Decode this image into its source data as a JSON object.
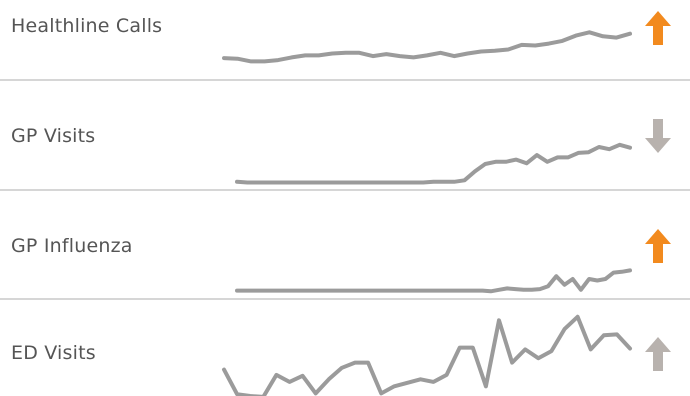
{
  "colors": {
    "line": "#9b9b9b",
    "up_alert": "#f28a1e",
    "down_neutral": "#b8b2ae",
    "up_neutral": "#b8b2ae"
  },
  "chart_data": [
    {
      "type": "line",
      "title": "Healthline Calls",
      "trend": "up",
      "trend_color": "up_alert",
      "ylim": [
        0,
        100
      ],
      "x": [
        0,
        1,
        2,
        3,
        4,
        5,
        6,
        7,
        8,
        9,
        10,
        11,
        12,
        13,
        14,
        15,
        16,
        17,
        18,
        19,
        20,
        21,
        22,
        23,
        24,
        25,
        26,
        27,
        28,
        29,
        30
      ],
      "values": [
        12,
        11,
        7,
        7,
        9,
        13,
        16,
        16,
        19,
        20,
        20,
        15,
        18,
        15,
        13,
        16,
        20,
        15,
        19,
        22,
        23,
        25,
        32,
        31,
        34,
        38,
        46,
        51,
        45,
        43,
        49
      ]
    },
    {
      "type": "line",
      "title": "GP Visits",
      "trend": "down",
      "trend_color": "down_neutral",
      "ylim": [
        0,
        100
      ],
      "x": [
        0,
        1,
        2,
        3,
        4,
        5,
        6,
        7,
        8,
        9,
        10,
        11,
        12,
        13,
        14,
        15,
        16,
        17,
        18,
        19,
        20,
        21,
        22,
        23,
        24,
        25,
        26,
        27,
        28,
        29,
        30,
        31,
        32,
        33,
        34,
        35,
        36,
        37,
        38
      ],
      "values": [
        3,
        2,
        2,
        2,
        2,
        2,
        2,
        2,
        2,
        2,
        2,
        2,
        2,
        2,
        2,
        2,
        2,
        2,
        2,
        3,
        3,
        3,
        5,
        17,
        27,
        30,
        30,
        33,
        28,
        39,
        30,
        36,
        36,
        42,
        43,
        50,
        47,
        53,
        49
      ]
    },
    {
      "type": "line",
      "title": "GP Influenza",
      "trend": "up",
      "trend_color": "up_alert",
      "ylim": [
        0,
        100
      ],
      "x": [
        0,
        1,
        2,
        3,
        4,
        5,
        6,
        7,
        8,
        9,
        10,
        11,
        12,
        13,
        14,
        15,
        16,
        17,
        18,
        19,
        20,
        21,
        22,
        23,
        24,
        25,
        26,
        27,
        28,
        29,
        30,
        31,
        32,
        33,
        34,
        35,
        36,
        37,
        38,
        39,
        40,
        41,
        42,
        43,
        44,
        45,
        46,
        47,
        48
      ],
      "values": [
        2,
        2,
        2,
        2,
        2,
        2,
        2,
        2,
        2,
        2,
        2,
        2,
        2,
        2,
        2,
        2,
        2,
        2,
        2,
        2,
        2,
        2,
        2,
        2,
        2,
        2,
        2,
        2,
        2,
        2,
        2,
        1,
        3,
        5,
        4,
        3,
        3,
        4,
        8,
        22,
        10,
        18,
        3,
        18,
        16,
        18,
        27,
        28,
        30
      ]
    },
    {
      "type": "line",
      "title": "ED Visits",
      "trend": "up",
      "trend_color": "up_neutral",
      "ylim": [
        0,
        100
      ],
      "x": [
        0,
        1,
        2,
        3,
        4,
        5,
        6,
        7,
        8,
        9,
        10,
        11,
        12,
        13,
        14,
        15,
        16,
        17,
        18,
        19,
        20,
        21,
        22,
        23,
        24,
        25,
        26,
        27,
        28,
        29,
        30,
        31
      ],
      "values": [
        30,
        2,
        0,
        -1,
        24,
        16,
        23,
        3,
        19,
        32,
        38,
        38,
        3,
        11,
        15,
        19,
        16,
        24,
        55,
        55,
        11,
        86,
        38,
        53,
        43,
        51,
        76,
        90,
        53,
        69,
        70,
        54
      ]
    }
  ]
}
